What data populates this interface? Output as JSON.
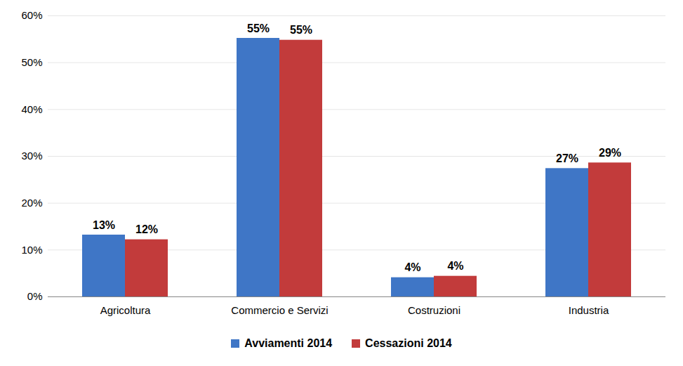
{
  "chart_data": {
    "type": "bar",
    "categories": [
      "Agricoltura",
      "Commercio e Servizi",
      "Costruzioni",
      "Industria"
    ],
    "series": [
      {
        "name": "Avviamenti 2014",
        "color": "#3f76c6",
        "values": [
          13.2,
          55.2,
          4.1,
          27.4
        ],
        "value_labels": [
          "13%",
          "55%",
          "4%",
          "27%"
        ]
      },
      {
        "name": "Cessazioni 2014",
        "color": "#c23b3b",
        "values": [
          12.2,
          54.8,
          4.4,
          28.6
        ],
        "value_labels": [
          "12%",
          "55%",
          "4%",
          "29%"
        ]
      }
    ],
    "ylim": [
      0,
      60
    ],
    "yticks": [
      {
        "value": 0,
        "label": "0%"
      },
      {
        "value": 10,
        "label": "10%"
      },
      {
        "value": 20,
        "label": "20%"
      },
      {
        "value": 30,
        "label": "30%"
      },
      {
        "value": 40,
        "label": "40%"
      },
      {
        "value": 50,
        "label": "50%"
      },
      {
        "value": 60,
        "label": "60%"
      }
    ],
    "grid": true,
    "legend": "bottom",
    "data_labels": true
  }
}
